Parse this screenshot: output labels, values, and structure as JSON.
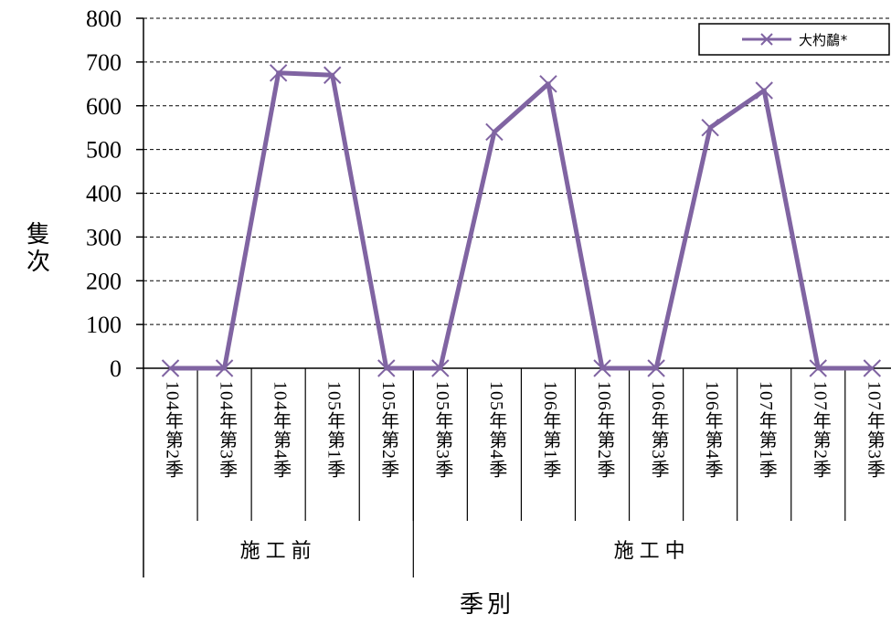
{
  "chart_data": {
    "type": "line",
    "ylabel": "隻次",
    "xlabel": "季別",
    "ylim": [
      0,
      800
    ],
    "yticks": [
      "0",
      "100",
      "200",
      "300",
      "400",
      "500",
      "600",
      "700",
      "800"
    ],
    "grid": "horizontal dashed",
    "legend_position": "top-right",
    "categories": [
      "104年第2季",
      "104年第3季",
      "104年第4季",
      "105年第1季",
      "105年第2季",
      "105年第3季",
      "105年第4季",
      "106年第1季",
      "106年第2季",
      "106年第3季",
      "106年第4季",
      "107年第1季",
      "107年第2季",
      "107年第3季"
    ],
    "groups": [
      {
        "label": "施工前",
        "count": 5
      },
      {
        "label": "施工中",
        "count": 9
      }
    ],
    "series": [
      {
        "name": "大杓鷸*",
        "color": "#8064a2",
        "marker": "x",
        "values": [
          0,
          0,
          675,
          670,
          0,
          0,
          540,
          650,
          0,
          0,
          550,
          635,
          0,
          0
        ]
      }
    ]
  }
}
